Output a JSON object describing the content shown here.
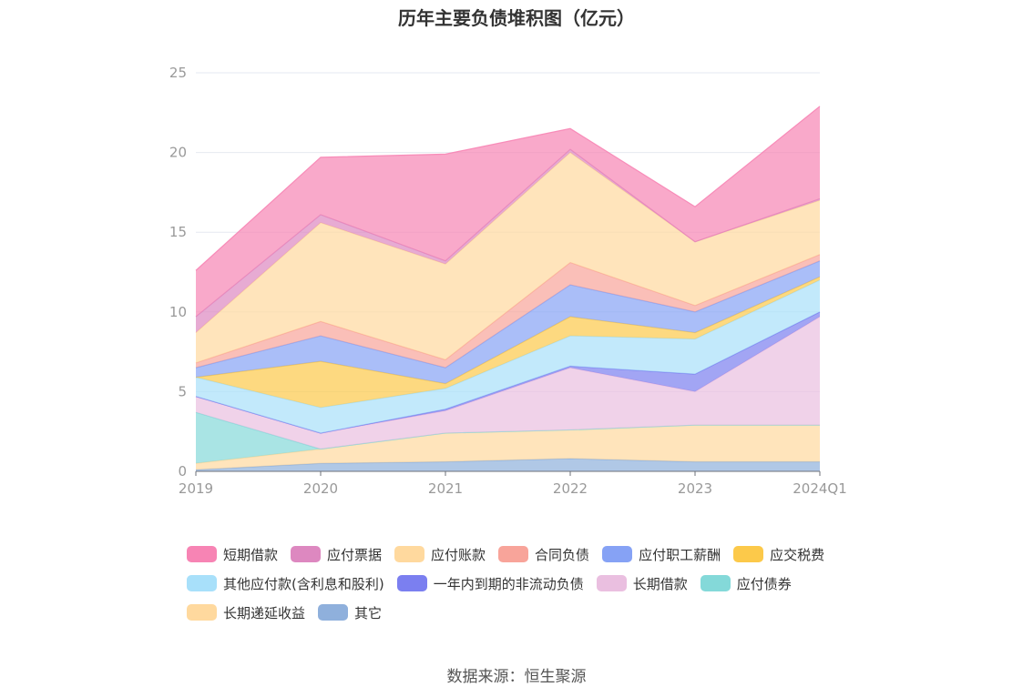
{
  "title": "历年主要负债堆积图（亿元）",
  "source": "数据来源：恒生聚源",
  "chart_data": {
    "type": "area",
    "stacked": true,
    "categories": [
      "2019",
      "2020",
      "2021",
      "2022",
      "2023",
      "2024Q1"
    ],
    "ylim": [
      0,
      25
    ],
    "yticks": [
      0,
      5,
      10,
      15,
      20,
      25
    ],
    "grid": true,
    "legend_position": "bottom",
    "series": [
      {
        "name": "其它",
        "color": "#8fb0dc",
        "values": [
          0.1,
          0.5,
          0.6,
          0.8,
          0.6,
          0.6
        ]
      },
      {
        "name": "长期递延收益",
        "color": "#ffd99e",
        "values": [
          0.4,
          0.9,
          1.8,
          1.8,
          2.3,
          2.3
        ]
      },
      {
        "name": "应付债券",
        "color": "#84d9d9",
        "values": [
          3.2,
          0.0,
          0.0,
          0.0,
          0.0,
          0.0
        ]
      },
      {
        "name": "长期借款",
        "color": "#eabfe0",
        "values": [
          1.0,
          1.0,
          1.4,
          3.9,
          2.1,
          6.8
        ]
      },
      {
        "name": "一年内到期的非流动负债",
        "color": "#7b7ff0",
        "values": [
          0.0,
          0.0,
          0.1,
          0.1,
          1.1,
          0.3
        ]
      },
      {
        "name": "其他应付款(含利息和股利)",
        "color": "#a8e0fa",
        "values": [
          1.2,
          1.6,
          1.3,
          1.9,
          2.2,
          2.0
        ]
      },
      {
        "name": "应交税费",
        "color": "#fcc94a",
        "values": [
          0.0,
          2.9,
          0.3,
          1.2,
          0.4,
          0.2
        ]
      },
      {
        "name": "应付职工薪酬",
        "color": "#86a2f5",
        "values": [
          0.6,
          1.6,
          1.0,
          2.0,
          1.3,
          1.0
        ]
      },
      {
        "name": "合同负债",
        "color": "#f8a49a",
        "values": [
          0.3,
          0.9,
          0.5,
          1.4,
          0.4,
          0.4
        ]
      },
      {
        "name": "应付账款",
        "color": "#ffd99e",
        "values": [
          1.9,
          6.2,
          6.0,
          6.9,
          4.0,
          3.4
        ]
      },
      {
        "name": "应付票据",
        "color": "#dd88c0",
        "values": [
          1.0,
          0.5,
          0.2,
          0.2,
          0.0,
          0.1
        ]
      },
      {
        "name": "短期借款",
        "color": "#f784b4",
        "values": [
          2.9,
          3.6,
          6.7,
          1.3,
          2.2,
          5.8
        ]
      }
    ],
    "legend_order": [
      "短期借款",
      "应付票据",
      "应付账款",
      "合同负债",
      "应付职工薪酬",
      "应交税费",
      "其他应付款(含利息和股利)",
      "一年内到期的非流动负债",
      "长期借款",
      "应付债券",
      "长期递延收益",
      "其它"
    ]
  }
}
